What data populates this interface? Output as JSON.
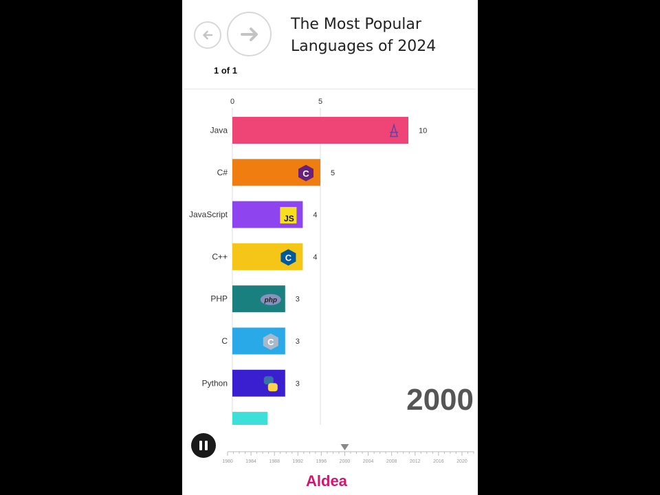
{
  "header": {
    "title": "The Most Popular Languages of 2024",
    "page_indicator": "1 of 1"
  },
  "chart_data": {
    "type": "bar",
    "orientation": "horizontal",
    "title": "The Most Popular Languages of 2024",
    "categories": [
      "Java",
      "C#",
      "JavaScript",
      "C++",
      "PHP",
      "C",
      "Python",
      ""
    ],
    "values": [
      10,
      5,
      4,
      4,
      3,
      3,
      3,
      2
    ],
    "colors": [
      "#ee4576",
      "#ef7d0f",
      "#8e44ee",
      "#f5c518",
      "#19807f",
      "#2aa9e8",
      "#3a1fd1",
      "#3de0d8"
    ],
    "icons": [
      "java-icon",
      "csharp-icon",
      "javascript-icon",
      "cpp-icon",
      "php-icon",
      "c-icon",
      "python-icon",
      ""
    ],
    "x_ticks": [
      "0",
      "5"
    ],
    "xlim": [
      0,
      14.4
    ],
    "current_year": "2000",
    "grid": "vertical",
    "timeline": {
      "labels": [
        "1980",
        "1984",
        "1988",
        "1992",
        "1996",
        "2000",
        "2004",
        "2008",
        "2012",
        "2016",
        "2020"
      ],
      "start": 1980,
      "end": 2022,
      "current": 2000
    }
  },
  "controls": {
    "prev_icon": "arrow-left-icon",
    "next_icon": "arrow-right-icon",
    "play_icon": "pause-icon"
  },
  "footer": {
    "brand": "Aldea"
  }
}
